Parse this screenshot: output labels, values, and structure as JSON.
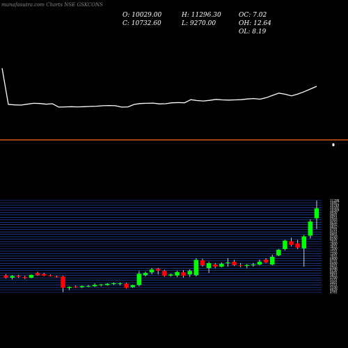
{
  "header": {
    "watermark": "munafasutra.com Charts NSE GSKCONS",
    "open": "O: 10029.00",
    "high": "H: 11296.30",
    "oc": "OC: 7.02",
    "close": "C: 10732.60",
    "low": "L: 9270.00",
    "oh": "OH: 12.64",
    "ol": "OL: 8.19"
  },
  "colors": {
    "background": "#000000",
    "line": "#ffffff",
    "divider": "#ff6a1a",
    "grid": "#2a54d4",
    "up": "#00ff00",
    "down": "#ff0000",
    "wick": "#ffffff"
  },
  "chart_data": [
    {
      "type": "line",
      "title": "",
      "series": [
        {
          "values": [
            10900,
            9300,
            9280,
            9270,
            9310,
            9350,
            9340,
            9310,
            9330,
            9180,
            9190,
            9200,
            9190,
            9200,
            9210,
            9220,
            9240,
            9250,
            9240,
            9180,
            9190,
            9300,
            9340,
            9350,
            9360,
            9320,
            9330,
            9370,
            9380,
            9370,
            9510,
            9470,
            9450,
            9480,
            9520,
            9500,
            9490,
            9500,
            9510,
            9540,
            9560,
            9530,
            9600,
            9700,
            9800,
            9750,
            9680,
            9760,
            9860,
            9980,
            10100
          ]
        }
      ]
    },
    {
      "type": "candlestick",
      "title": "",
      "y_tick_labels": [
        "11296",
        "10957",
        "10749",
        "10591",
        "10389",
        "9950",
        "9601",
        "9451",
        "9303",
        "9152",
        "9002",
        "8852",
        "8701",
        "8551",
        "8401",
        "8249",
        "8100",
        "7951",
        "7800",
        "7651",
        "7500",
        "7351",
        "7200",
        "7051",
        "6900",
        "6751",
        "6600",
        "6451",
        "6300",
        "6150",
        "6001",
        "5851",
        "5700",
        "5551",
        "5401",
        "5251",
        "5100",
        "4929",
        "4781"
      ],
      "candles": [
        {
          "o": 5980,
          "h": 6080,
          "l": 5760,
          "c": 5820
        },
        {
          "o": 5820,
          "h": 6000,
          "l": 5700,
          "c": 5940
        },
        {
          "o": 5950,
          "h": 6020,
          "l": 5800,
          "c": 5880
        },
        {
          "o": 5870,
          "h": 5960,
          "l": 5720,
          "c": 5800
        },
        {
          "o": 5820,
          "h": 6050,
          "l": 5780,
          "c": 6020
        },
        {
          "o": 6150,
          "h": 6230,
          "l": 5950,
          "c": 6000
        },
        {
          "o": 6080,
          "h": 6160,
          "l": 5920,
          "c": 5960
        },
        {
          "o": 5990,
          "h": 6060,
          "l": 5900,
          "c": 5930
        },
        {
          "o": 5900,
          "h": 5960,
          "l": 5830,
          "c": 5880
        },
        {
          "o": 5900,
          "h": 5950,
          "l": 4800,
          "c": 5100
        },
        {
          "o": 5080,
          "h": 5200,
          "l": 4950,
          "c": 5160
        },
        {
          "o": 5190,
          "h": 5270,
          "l": 5100,
          "c": 5150
        },
        {
          "o": 5150,
          "h": 5260,
          "l": 5090,
          "c": 5230
        },
        {
          "o": 5210,
          "h": 5300,
          "l": 5150,
          "c": 5230
        },
        {
          "o": 5210,
          "h": 5420,
          "l": 5170,
          "c": 5310
        },
        {
          "o": 5290,
          "h": 5370,
          "l": 5200,
          "c": 5340
        },
        {
          "o": 5300,
          "h": 5420,
          "l": 5250,
          "c": 5390
        },
        {
          "o": 5370,
          "h": 5470,
          "l": 5300,
          "c": 5430
        },
        {
          "o": 5380,
          "h": 5470,
          "l": 5270,
          "c": 5420
        },
        {
          "o": 5400,
          "h": 5460,
          "l": 5050,
          "c": 5100
        },
        {
          "o": 5150,
          "h": 5330,
          "l": 5100,
          "c": 5290
        },
        {
          "o": 5300,
          "h": 6300,
          "l": 5200,
          "c": 6100
        },
        {
          "o": 6000,
          "h": 6250,
          "l": 5900,
          "c": 6150
        },
        {
          "o": 6200,
          "h": 6510,
          "l": 6050,
          "c": 6400
        },
        {
          "o": 6450,
          "h": 6520,
          "l": 6050,
          "c": 6320
        },
        {
          "o": 6300,
          "h": 6380,
          "l": 5880,
          "c": 5950
        },
        {
          "o": 5970,
          "h": 6100,
          "l": 5900,
          "c": 6050
        },
        {
          "o": 5970,
          "h": 6300,
          "l": 5850,
          "c": 6220
        },
        {
          "o": 6200,
          "h": 6350,
          "l": 5820,
          "c": 5950
        },
        {
          "o": 6050,
          "h": 6420,
          "l": 5870,
          "c": 6300
        },
        {
          "o": 6000,
          "h": 7200,
          "l": 5900,
          "c": 7080
        },
        {
          "o": 7050,
          "h": 7170,
          "l": 6600,
          "c": 6700
        },
        {
          "o": 6500,
          "h": 6950,
          "l": 6150,
          "c": 6850
        },
        {
          "o": 6750,
          "h": 6850,
          "l": 6500,
          "c": 6600
        },
        {
          "o": 6600,
          "h": 6900,
          "l": 6550,
          "c": 6800
        },
        {
          "o": 6850,
          "h": 7200,
          "l": 6600,
          "c": 6900
        },
        {
          "o": 6950,
          "h": 7080,
          "l": 6650,
          "c": 6720
        },
        {
          "o": 6700,
          "h": 6850,
          "l": 6550,
          "c": 6650
        },
        {
          "o": 6650,
          "h": 6780,
          "l": 6500,
          "c": 6720
        },
        {
          "o": 6720,
          "h": 6880,
          "l": 6600,
          "c": 6760
        },
        {
          "o": 6750,
          "h": 7100,
          "l": 6700,
          "c": 6950
        },
        {
          "o": 7100,
          "h": 7200,
          "l": 6850,
          "c": 6900
        },
        {
          "o": 6750,
          "h": 7450,
          "l": 6700,
          "c": 7300
        },
        {
          "o": 7400,
          "h": 7850,
          "l": 7350,
          "c": 7800
        },
        {
          "o": 7850,
          "h": 8500,
          "l": 7750,
          "c": 8450
        },
        {
          "o": 8400,
          "h": 8650,
          "l": 8050,
          "c": 8150
        },
        {
          "o": 8250,
          "h": 8500,
          "l": 7850,
          "c": 7950
        },
        {
          "o": 7900,
          "h": 8850,
          "l": 6600,
          "c": 8750
        },
        {
          "o": 8800,
          "h": 9950,
          "l": 8600,
          "c": 9800
        },
        {
          "o": 10029,
          "h": 11296.3,
          "l": 9270,
          "c": 10732.6
        }
      ]
    }
  ]
}
